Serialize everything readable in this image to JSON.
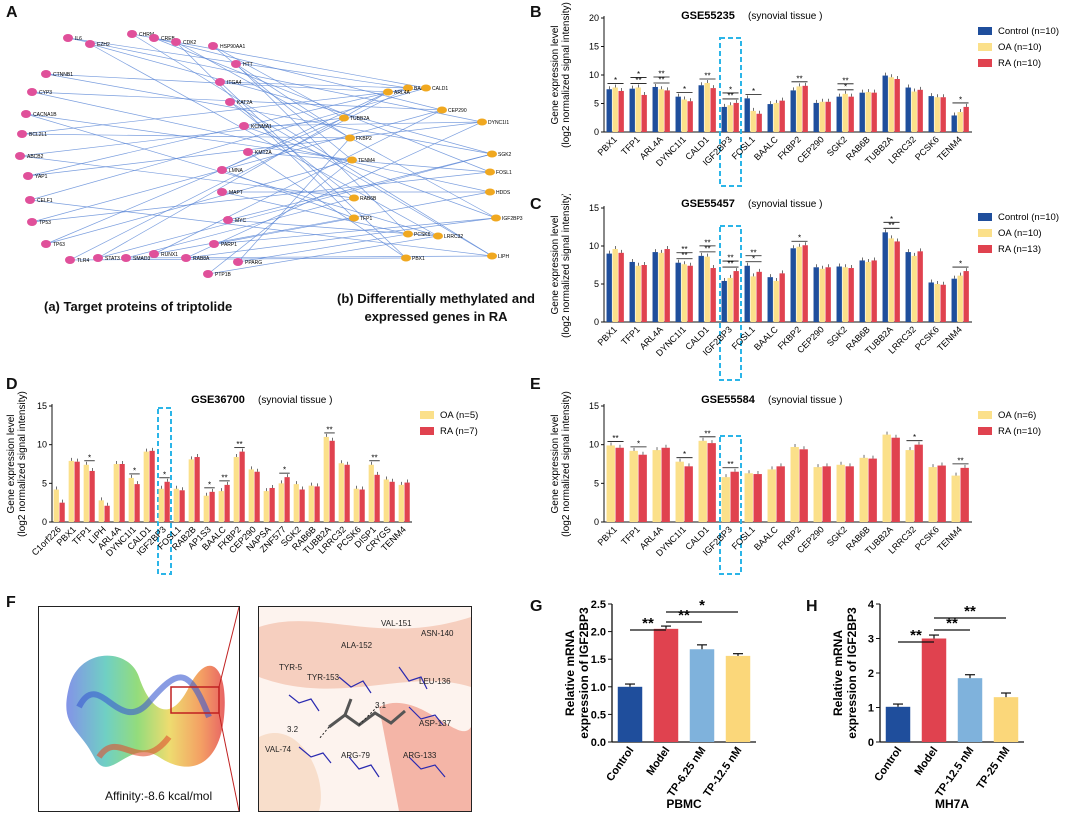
{
  "colors": {
    "control": "#1f4e9c",
    "oa": "#fbe08a",
    "ra": "#e0424f",
    "model": "#e0424f",
    "tp_low": "#7fb2dc",
    "tp_high": "#fbd77a",
    "highlight": "#2bb5e8",
    "node_target": "#e0509a",
    "node_gene": "#f0a820",
    "edge": "#5a86d6"
  },
  "panel_labels": {
    "a": "A",
    "b": "B",
    "c": "C",
    "d": "D",
    "e": "E",
    "f": "F",
    "g": "G",
    "h": "H"
  },
  "panel_a": {
    "caption_a": "(a) Target proteins of triptolide",
    "caption_b_line1": "(b) Differentially methylated and",
    "caption_b_line2": "expressed genes in RA",
    "targets": [
      "IL6",
      "EZH2",
      "CHRM",
      "CREB",
      "CDK2",
      "HSP90AA1",
      "HTT",
      "ITGA4",
      "CTNNB1",
      "KAT2A",
      "CYP3",
      "KCNMA1",
      "CACNA1B",
      "BCL2L1",
      "KMT2A",
      "LMNA",
      "ABCB2",
      "MAPT",
      "YAP1",
      "MYC",
      "CELF1",
      "TP53",
      "PARP1",
      "TP63",
      "PPARG",
      "TLR4",
      "STAT3",
      "SMAD3",
      "RUNX1",
      "RAB8A",
      "PTP1B"
    ],
    "genes": [
      "BAALC",
      "CALD1",
      "ARL4A",
      "CEP290",
      "TUBB2A",
      "DYNC1I1",
      "FKBP2",
      "SGK2",
      "FOSL1",
      "RAB6B",
      "IGF2BP3",
      "PCSK6",
      "LRRC32",
      "PBX1",
      "LIPH",
      "TFP1",
      "HDDS",
      "TENM4"
    ]
  },
  "y_label_line1": "Gene expression level",
  "y_label_line2": "(log2 normalized signal intensity)",
  "chart_data": [
    {
      "panel": "B",
      "type": "bar",
      "title": "GSE55235",
      "subtitle": "(synovial tissue  )",
      "ylim": [
        0,
        20
      ],
      "yticks": [
        0,
        5,
        10,
        15,
        20
      ],
      "categories": [
        "PBX1",
        "TFP1",
        "ARL4A",
        "DYNC1I1",
        "CALD1",
        "IGF2BP3",
        "FOSL1",
        "BAALC",
        "FKBP2",
        "CEP290",
        "SGK2",
        "RAB6B",
        "TUBB2A",
        "LRRC32",
        "PCSK6",
        "TENM4"
      ],
      "series": [
        {
          "name": "Control (n=10)",
          "color_key": "control",
          "values": [
            7.5,
            7.6,
            7.9,
            6.2,
            8.2,
            4.4,
            5.9,
            4.9,
            7.3,
            5.1,
            6.2,
            6.9,
            9.9,
            7.8,
            6.3,
            2.9
          ]
        },
        {
          "name": "OA (n=10)",
          "color_key": "oa",
          "values": [
            7.8,
            7.8,
            7.5,
            5.7,
            8.6,
            4.7,
            3.7,
            5.1,
            8.0,
            5.3,
            6.7,
            7.0,
            9.6,
            7.1,
            6.1,
            3.5
          ]
        },
        {
          "name": "RA (n=10)",
          "color_key": "ra",
          "values": [
            7.2,
            6.5,
            7.3,
            5.4,
            7.7,
            5.1,
            3.2,
            5.5,
            8.1,
            5.3,
            6.2,
            6.9,
            9.3,
            7.4,
            6.1,
            4.4
          ]
        }
      ],
      "sig": [
        {
          "cat": 0,
          "label": "*"
        },
        {
          "cat": 1,
          "label": "**"
        },
        {
          "cat": 1,
          "label": "*"
        },
        {
          "cat": 2,
          "label": "**"
        },
        {
          "cat": 2,
          "label": "**"
        },
        {
          "cat": 3,
          "label": "*"
        },
        {
          "cat": 4,
          "label": "**"
        },
        {
          "cat": 5,
          "label": "**"
        },
        {
          "cat": 5,
          "label": "*"
        },
        {
          "cat": 6,
          "label": "*"
        },
        {
          "cat": 8,
          "label": "**"
        },
        {
          "cat": 10,
          "label": "*"
        },
        {
          "cat": 10,
          "label": "**"
        },
        {
          "cat": 15,
          "label": "*"
        }
      ],
      "highlight": "IGF2BP3"
    },
    {
      "panel": "C",
      "type": "bar",
      "title": "GSE55457",
      "subtitle": "(synovial tissue  )",
      "ylim": [
        0,
        15
      ],
      "yticks": [
        0,
        5,
        10,
        15
      ],
      "categories": [
        "PBX1",
        "TFP1",
        "ARL4A",
        "DYNC1I1",
        "CALD1",
        "IGF2BP3",
        "FOSL1",
        "BAALC",
        "FKBP2",
        "CEP290",
        "SGK2",
        "RAB6B",
        "TUBB2A",
        "LRRC32",
        "PCSK6",
        "TENM4"
      ],
      "series": [
        {
          "name": "Control (n=10)",
          "color_key": "control",
          "values": [
            9.0,
            7.9,
            9.2,
            7.8,
            8.7,
            5.4,
            7.4,
            5.9,
            9.7,
            7.2,
            7.3,
            8.1,
            11.8,
            9.2,
            5.2,
            5.7
          ]
        },
        {
          "name": "OA (n=10)",
          "color_key": "oa",
          "values": [
            9.6,
            7.4,
            9.1,
            7.6,
            8.6,
            5.8,
            6.0,
            5.4,
            9.9,
            7.0,
            7.2,
            7.9,
            11.0,
            8.7,
            5.0,
            6.1
          ]
        },
        {
          "name": "RA (n=13)",
          "color_key": "ra",
          "values": [
            9.1,
            7.5,
            9.6,
            7.4,
            7.1,
            6.7,
            6.6,
            6.4,
            10.1,
            7.2,
            7.1,
            8.1,
            10.6,
            9.3,
            4.9,
            6.7
          ]
        }
      ],
      "sig": [
        {
          "cat": 3,
          "label": "**"
        },
        {
          "cat": 3,
          "label": "**"
        },
        {
          "cat": 4,
          "label": "**"
        },
        {
          "cat": 4,
          "label": "**"
        },
        {
          "cat": 5,
          "label": "**"
        },
        {
          "cat": 5,
          "label": "**"
        },
        {
          "cat": 6,
          "label": "*"
        },
        {
          "cat": 6,
          "label": "**"
        },
        {
          "cat": 8,
          "label": "*"
        },
        {
          "cat": 12,
          "label": "**"
        },
        {
          "cat": 12,
          "label": "*"
        },
        {
          "cat": 15,
          "label": "*"
        }
      ],
      "highlight": "IGF2BP3"
    },
    {
      "panel": "D",
      "type": "bar",
      "title": "GSE36700",
      "subtitle": "(synovial tissue  )",
      "ylim": [
        0,
        15
      ],
      "yticks": [
        0,
        5,
        10,
        15
      ],
      "categories": [
        "C1orf226",
        "PBX1",
        "TFP1",
        "LIPH",
        "ARL4A",
        "DYNC1I1",
        "CALD1",
        "IGF2BP3",
        "FOSL1",
        "RAB2B",
        "AP1S3",
        "BAALC",
        "FKBP2",
        "CEP290",
        "NAPSA",
        "ZNF577",
        "SGK2",
        "RAB6B",
        "TUBB2A",
        "LRRC32",
        "PCSK6",
        "DISP1",
        "CRYGS",
        "TENM4"
      ],
      "series": [
        {
          "name": "OA (n=5)",
          "color_key": "oa",
          "values": [
            4.2,
            7.9,
            7.4,
            2.8,
            7.5,
            5.7,
            9.1,
            4.3,
            4.3,
            8.1,
            3.4,
            4.0,
            8.4,
            6.8,
            4.0,
            5.0,
            4.9,
            4.7,
            11.0,
            7.6,
            4.3,
            7.4,
            5.5,
            4.8
          ]
        },
        {
          "name": "RA (n=7)",
          "color_key": "ra",
          "values": [
            2.5,
            7.8,
            6.6,
            2.1,
            7.5,
            4.9,
            9.2,
            5.2,
            4.1,
            8.4,
            3.9,
            4.8,
            9.1,
            6.5,
            4.4,
            5.8,
            4.2,
            4.6,
            10.5,
            7.4,
            4.2,
            6.1,
            5.2,
            5.1
          ]
        }
      ],
      "sig": [
        {
          "cat": 2,
          "label": "*"
        },
        {
          "cat": 5,
          "label": "*"
        },
        {
          "cat": 7,
          "label": "*"
        },
        {
          "cat": 10,
          "label": "*"
        },
        {
          "cat": 11,
          "label": "**"
        },
        {
          "cat": 12,
          "label": "**"
        },
        {
          "cat": 15,
          "label": "*"
        },
        {
          "cat": 18,
          "label": "**"
        },
        {
          "cat": 21,
          "label": "**"
        }
      ],
      "highlight": "IGF2BP3"
    },
    {
      "panel": "E",
      "type": "bar",
      "title": "GSE55584",
      "subtitle": "(synovial tissue  )",
      "ylim": [
        0,
        15
      ],
      "yticks": [
        0,
        5,
        10,
        15
      ],
      "categories": [
        "PBX1",
        "TFP1",
        "ARL4A",
        "DYNC1I1",
        "CALD1",
        "IGF2BP3",
        "FOSL1",
        "BAALC",
        "FKBP2",
        "CEP290",
        "SGK2",
        "RAB6B",
        "TUBB2A",
        "LRRC32",
        "PCSK6",
        "TENM4"
      ],
      "series": [
        {
          "name": "OA (n=6)",
          "color_key": "oa",
          "values": [
            9.9,
            9.2,
            9.3,
            7.8,
            10.5,
            5.8,
            6.3,
            6.8,
            9.7,
            7.1,
            7.4,
            8.3,
            11.3,
            9.3,
            7.1,
            6.0
          ]
        },
        {
          "name": "RA (n=10)",
          "color_key": "ra",
          "values": [
            9.6,
            8.7,
            9.6,
            7.2,
            10.2,
            6.5,
            6.2,
            7.2,
            9.4,
            7.2,
            7.2,
            8.2,
            10.9,
            10.0,
            7.3,
            7.0
          ]
        }
      ],
      "sig": [
        {
          "cat": 0,
          "label": "**"
        },
        {
          "cat": 1,
          "label": "*"
        },
        {
          "cat": 3,
          "label": "*"
        },
        {
          "cat": 4,
          "label": "**"
        },
        {
          "cat": 5,
          "label": "**"
        },
        {
          "cat": 13,
          "label": "*"
        },
        {
          "cat": 15,
          "label": "**"
        }
      ],
      "highlight": "IGF2BP3"
    },
    {
      "panel": "G",
      "type": "bar",
      "xlabel": "PBMC",
      "ylabel_line1": "Relative mRNA",
      "ylabel_line2": "expression of IGF2BP3",
      "ylim": [
        0,
        2.5
      ],
      "yticks": [
        0.0,
        0.5,
        1.0,
        1.5,
        2.0,
        2.5
      ],
      "categories": [
        "Control",
        "Model",
        "TP-6.25 nM",
        "TP-12.5 nM"
      ],
      "color_keys": [
        "control",
        "model",
        "tp_low",
        "tp_high"
      ],
      "values": [
        1.0,
        2.05,
        1.68,
        1.56
      ],
      "errors": [
        0.05,
        0.05,
        0.08,
        0.04
      ],
      "sig": [
        "**",
        "**",
        "*"
      ]
    },
    {
      "panel": "H",
      "type": "bar",
      "xlabel": "MH7A",
      "ylabel_line1": "Relative mRNA",
      "ylabel_line2": "expression of IGF2BP3",
      "ylim": [
        0,
        4
      ],
      "yticks": [
        0,
        1,
        2,
        3,
        4
      ],
      "categories": [
        "Control",
        "Model",
        "TP-12.5 nM",
        "TP-25 nM"
      ],
      "color_keys": [
        "control",
        "model",
        "tp_low",
        "tp_high"
      ],
      "values": [
        1.02,
        3.0,
        1.85,
        1.3
      ],
      "errors": [
        0.08,
        0.1,
        0.1,
        0.12
      ],
      "sig": [
        "**",
        "**",
        "**"
      ]
    }
  ],
  "panel_f": {
    "affinity": "Affinity:-8.6 kcal/mol",
    "residues": [
      "VAL-151",
      "ASN-140",
      "ALA-152",
      "TYR-5",
      "TYR-153",
      "LEU-136",
      "ASP-137",
      "VAL-74",
      "ARG-79",
      "ARG-133"
    ],
    "distances": [
      "3.1",
      "3.2"
    ]
  }
}
